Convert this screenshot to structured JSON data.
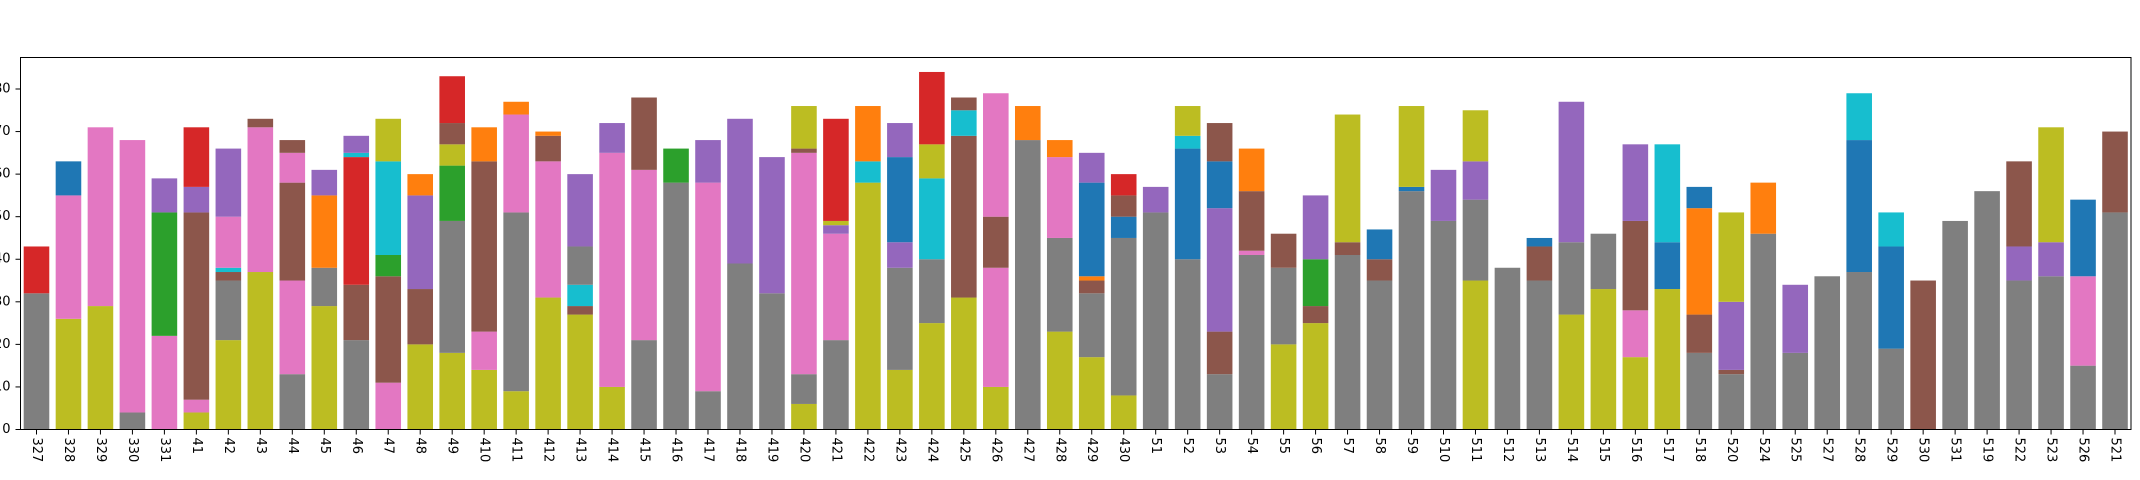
{
  "chart_data": {
    "type": "bar",
    "stacked": true,
    "ylim": [
      0,
      87.4
    ],
    "yticks": [
      0,
      10,
      20,
      30,
      40,
      50,
      60,
      70,
      80
    ],
    "bars": [
      {
        "category": "327",
        "segments": [
          [
            "#7f7f7f",
            32
          ],
          [
            "#d62728",
            11
          ]
        ]
      },
      {
        "category": "328",
        "segments": [
          [
            "#bcbd22",
            26
          ],
          [
            "#e377c2",
            29
          ],
          [
            "#1f77b4",
            8
          ]
        ]
      },
      {
        "category": "329",
        "segments": [
          [
            "#bcbd22",
            29
          ],
          [
            "#e377c2",
            42
          ]
        ]
      },
      {
        "category": "330",
        "segments": [
          [
            "#7f7f7f",
            4
          ],
          [
            "#e377c2",
            64
          ]
        ]
      },
      {
        "category": "331",
        "segments": [
          [
            "#e377c2",
            22
          ],
          [
            "#2ca02c",
            29
          ],
          [
            "#9467bd",
            8
          ]
        ]
      },
      {
        "category": "41",
        "segments": [
          [
            "#bcbd22",
            4
          ],
          [
            "#e377c2",
            3
          ],
          [
            "#8c564b",
            44
          ],
          [
            "#9467bd",
            6
          ],
          [
            "#d62728",
            14
          ]
        ]
      },
      {
        "category": "42",
        "segments": [
          [
            "#bcbd22",
            21
          ],
          [
            "#7f7f7f",
            14
          ],
          [
            "#8c564b",
            2
          ],
          [
            "#17becf",
            1
          ],
          [
            "#e377c2",
            12
          ],
          [
            "#9467bd",
            16
          ]
        ]
      },
      {
        "category": "43",
        "segments": [
          [
            "#bcbd22",
            37
          ],
          [
            "#e377c2",
            34
          ],
          [
            "#8c564b",
            2
          ]
        ]
      },
      {
        "category": "44",
        "segments": [
          [
            "#7f7f7f",
            13
          ],
          [
            "#e377c2",
            22
          ],
          [
            "#8c564b",
            23
          ],
          [
            "#e377c2",
            7
          ],
          [
            "#8c564b",
            3
          ]
        ]
      },
      {
        "category": "45",
        "segments": [
          [
            "#bcbd22",
            29
          ],
          [
            "#7f7f7f",
            9
          ],
          [
            "#ff7f0e",
            17
          ],
          [
            "#9467bd",
            6
          ]
        ]
      },
      {
        "category": "46",
        "segments": [
          [
            "#7f7f7f",
            21
          ],
          [
            "#8c564b",
            13
          ],
          [
            "#d62728",
            30
          ],
          [
            "#17becf",
            1
          ],
          [
            "#9467bd",
            4
          ]
        ]
      },
      {
        "category": "47",
        "segments": [
          [
            "#e377c2",
            11
          ],
          [
            "#8c564b",
            25
          ],
          [
            "#2ca02c",
            5
          ],
          [
            "#17becf",
            22
          ],
          [
            "#bcbd22",
            10
          ]
        ]
      },
      {
        "category": "48",
        "segments": [
          [
            "#bcbd22",
            20
          ],
          [
            "#8c564b",
            13
          ],
          [
            "#9467bd",
            22
          ],
          [
            "#ff7f0e",
            5
          ]
        ]
      },
      {
        "category": "49",
        "segments": [
          [
            "#bcbd22",
            18
          ],
          [
            "#7f7f7f",
            31
          ],
          [
            "#2ca02c",
            13
          ],
          [
            "#bcbd22",
            5
          ],
          [
            "#8c564b",
            5
          ],
          [
            "#d62728",
            11
          ]
        ]
      },
      {
        "category": "410",
        "segments": [
          [
            "#bcbd22",
            14
          ],
          [
            "#e377c2",
            9
          ],
          [
            "#8c564b",
            40
          ],
          [
            "#ff7f0e",
            8
          ]
        ]
      },
      {
        "category": "411",
        "segments": [
          [
            "#bcbd22",
            9
          ],
          [
            "#7f7f7f",
            42
          ],
          [
            "#e377c2",
            23
          ],
          [
            "#ff7f0e",
            3
          ]
        ]
      },
      {
        "category": "412",
        "segments": [
          [
            "#bcbd22",
            31
          ],
          [
            "#e377c2",
            32
          ],
          [
            "#8c564b",
            6
          ],
          [
            "#ff7f0e",
            1
          ]
        ]
      },
      {
        "category": "413",
        "segments": [
          [
            "#bcbd22",
            27
          ],
          [
            "#8c564b",
            2
          ],
          [
            "#17becf",
            5
          ],
          [
            "#7f7f7f",
            9
          ],
          [
            "#9467bd",
            17
          ]
        ]
      },
      {
        "category": "414",
        "segments": [
          [
            "#bcbd22",
            10
          ],
          [
            "#e377c2",
            55
          ],
          [
            "#9467bd",
            7
          ]
        ]
      },
      {
        "category": "415",
        "segments": [
          [
            "#7f7f7f",
            21
          ],
          [
            "#e377c2",
            40
          ],
          [
            "#8c564b",
            17
          ]
        ]
      },
      {
        "category": "416",
        "segments": [
          [
            "#7f7f7f",
            58
          ],
          [
            "#2ca02c",
            8
          ]
        ]
      },
      {
        "category": "417",
        "segments": [
          [
            "#7f7f7f",
            9
          ],
          [
            "#e377c2",
            49
          ],
          [
            "#9467bd",
            10
          ]
        ]
      },
      {
        "category": "418",
        "segments": [
          [
            "#7f7f7f",
            39
          ],
          [
            "#9467bd",
            34
          ]
        ]
      },
      {
        "category": "419",
        "segments": [
          [
            "#7f7f7f",
            32
          ],
          [
            "#9467bd",
            32
          ]
        ]
      },
      {
        "category": "420",
        "segments": [
          [
            "#bcbd22",
            6
          ],
          [
            "#7f7f7f",
            7
          ],
          [
            "#e377c2",
            52
          ],
          [
            "#8c564b",
            1
          ],
          [
            "#bcbd22",
            10
          ]
        ]
      },
      {
        "category": "421",
        "segments": [
          [
            "#7f7f7f",
            21
          ],
          [
            "#e377c2",
            25
          ],
          [
            "#9467bd",
            2
          ],
          [
            "#bcbd22",
            1
          ],
          [
            "#d62728",
            24
          ]
        ]
      },
      {
        "category": "422",
        "segments": [
          [
            "#bcbd22",
            58
          ],
          [
            "#17becf",
            5
          ],
          [
            "#ff7f0e",
            13
          ]
        ]
      },
      {
        "category": "423",
        "segments": [
          [
            "#bcbd22",
            14
          ],
          [
            "#7f7f7f",
            24
          ],
          [
            "#9467bd",
            6
          ],
          [
            "#1f77b4",
            20
          ],
          [
            "#9467bd",
            8
          ]
        ]
      },
      {
        "category": "424",
        "segments": [
          [
            "#bcbd22",
            25
          ],
          [
            "#7f7f7f",
            15
          ],
          [
            "#17becf",
            19
          ],
          [
            "#bcbd22",
            8
          ],
          [
            "#d62728",
            17
          ]
        ]
      },
      {
        "category": "425",
        "segments": [
          [
            "#bcbd22",
            31
          ],
          [
            "#8c564b",
            38
          ],
          [
            "#17becf",
            6
          ],
          [
            "#8c564b",
            3
          ]
        ]
      },
      {
        "category": "426",
        "segments": [
          [
            "#bcbd22",
            10
          ],
          [
            "#e377c2",
            28
          ],
          [
            "#8c564b",
            12
          ],
          [
            "#e377c2",
            29
          ]
        ]
      },
      {
        "category": "427",
        "segments": [
          [
            "#7f7f7f",
            68
          ],
          [
            "#ff7f0e",
            8
          ]
        ]
      },
      {
        "category": "428",
        "segments": [
          [
            "#bcbd22",
            23
          ],
          [
            "#7f7f7f",
            22
          ],
          [
            "#e377c2",
            19
          ],
          [
            "#ff7f0e",
            4
          ]
        ]
      },
      {
        "category": "429",
        "segments": [
          [
            "#bcbd22",
            17
          ],
          [
            "#7f7f7f",
            15
          ],
          [
            "#8c564b",
            3
          ],
          [
            "#ff7f0e",
            1
          ],
          [
            "#1f77b4",
            22
          ],
          [
            "#9467bd",
            7
          ]
        ]
      },
      {
        "category": "430",
        "segments": [
          [
            "#bcbd22",
            8
          ],
          [
            "#7f7f7f",
            37
          ],
          [
            "#1f77b4",
            5
          ],
          [
            "#8c564b",
            5
          ],
          [
            "#d62728",
            5
          ]
        ]
      },
      {
        "category": "51",
        "segments": [
          [
            "#7f7f7f",
            51
          ],
          [
            "#9467bd",
            6
          ]
        ]
      },
      {
        "category": "52",
        "segments": [
          [
            "#7f7f7f",
            40
          ],
          [
            "#1f77b4",
            26
          ],
          [
            "#17becf",
            3
          ],
          [
            "#bcbd22",
            7
          ]
        ]
      },
      {
        "category": "53",
        "segments": [
          [
            "#7f7f7f",
            13
          ],
          [
            "#8c564b",
            10
          ],
          [
            "#9467bd",
            29
          ],
          [
            "#1f77b4",
            11
          ],
          [
            "#8c564b",
            9
          ]
        ]
      },
      {
        "category": "54",
        "segments": [
          [
            "#7f7f7f",
            41
          ],
          [
            "#e377c2",
            1
          ],
          [
            "#8c564b",
            14
          ],
          [
            "#ff7f0e",
            10
          ]
        ]
      },
      {
        "category": "55",
        "segments": [
          [
            "#bcbd22",
            20
          ],
          [
            "#7f7f7f",
            18
          ],
          [
            "#8c564b",
            8
          ]
        ]
      },
      {
        "category": "56",
        "segments": [
          [
            "#bcbd22",
            25
          ],
          [
            "#8c564b",
            4
          ],
          [
            "#2ca02c",
            11
          ],
          [
            "#9467bd",
            15
          ]
        ]
      },
      {
        "category": "57",
        "segments": [
          [
            "#7f7f7f",
            41
          ],
          [
            "#8c564b",
            3
          ],
          [
            "#bcbd22",
            30
          ]
        ]
      },
      {
        "category": "58",
        "segments": [
          [
            "#7f7f7f",
            35
          ],
          [
            "#8c564b",
            5
          ],
          [
            "#1f77b4",
            7
          ]
        ]
      },
      {
        "category": "59",
        "segments": [
          [
            "#7f7f7f",
            56
          ],
          [
            "#1f77b4",
            1
          ],
          [
            "#bcbd22",
            19
          ]
        ]
      },
      {
        "category": "510",
        "segments": [
          [
            "#7f7f7f",
            49
          ],
          [
            "#9467bd",
            12
          ]
        ]
      },
      {
        "category": "511",
        "segments": [
          [
            "#bcbd22",
            35
          ],
          [
            "#7f7f7f",
            19
          ],
          [
            "#9467bd",
            9
          ],
          [
            "#bcbd22",
            12
          ]
        ]
      },
      {
        "category": "512",
        "segments": [
          [
            "#7f7f7f",
            38
          ]
        ]
      },
      {
        "category": "513",
        "segments": [
          [
            "#7f7f7f",
            35
          ],
          [
            "#8c564b",
            8
          ],
          [
            "#1f77b4",
            2
          ]
        ]
      },
      {
        "category": "514",
        "segments": [
          [
            "#bcbd22",
            27
          ],
          [
            "#7f7f7f",
            17
          ],
          [
            "#9467bd",
            33
          ]
        ]
      },
      {
        "category": "515",
        "segments": [
          [
            "#bcbd22",
            33
          ],
          [
            "#7f7f7f",
            13
          ]
        ]
      },
      {
        "category": "516",
        "segments": [
          [
            "#bcbd22",
            17
          ],
          [
            "#e377c2",
            11
          ],
          [
            "#8c564b",
            21
          ],
          [
            "#9467bd",
            18
          ]
        ]
      },
      {
        "category": "517",
        "segments": [
          [
            "#bcbd22",
            33
          ],
          [
            "#1f77b4",
            11
          ],
          [
            "#17becf",
            23
          ]
        ]
      },
      {
        "category": "518",
        "segments": [
          [
            "#7f7f7f",
            18
          ],
          [
            "#8c564b",
            9
          ],
          [
            "#ff7f0e",
            25
          ],
          [
            "#1f77b4",
            5
          ]
        ]
      },
      {
        "category": "520",
        "segments": [
          [
            "#7f7f7f",
            13
          ],
          [
            "#8c564b",
            1
          ],
          [
            "#9467bd",
            16
          ],
          [
            "#bcbd22",
            21
          ]
        ]
      },
      {
        "category": "524",
        "segments": [
          [
            "#7f7f7f",
            46
          ],
          [
            "#ff7f0e",
            12
          ]
        ]
      },
      {
        "category": "525",
        "segments": [
          [
            "#7f7f7f",
            18
          ],
          [
            "#9467bd",
            16
          ]
        ]
      },
      {
        "category": "527",
        "segments": [
          [
            "#7f7f7f",
            36
          ]
        ]
      },
      {
        "category": "528",
        "segments": [
          [
            "#7f7f7f",
            37
          ],
          [
            "#1f77b4",
            31
          ],
          [
            "#17becf",
            11
          ]
        ]
      },
      {
        "category": "529",
        "segments": [
          [
            "#7f7f7f",
            19
          ],
          [
            "#1f77b4",
            24
          ],
          [
            "#17becf",
            8
          ]
        ]
      },
      {
        "category": "530",
        "segments": [
          [
            "#8c564b",
            35
          ]
        ]
      },
      {
        "category": "531",
        "segments": [
          [
            "#7f7f7f",
            49
          ]
        ]
      },
      {
        "category": "519",
        "segments": [
          [
            "#7f7f7f",
            56
          ]
        ]
      },
      {
        "category": "522",
        "segments": [
          [
            "#7f7f7f",
            35
          ],
          [
            "#9467bd",
            8
          ],
          [
            "#8c564b",
            20
          ]
        ]
      },
      {
        "category": "523",
        "segments": [
          [
            "#7f7f7f",
            36
          ],
          [
            "#9467bd",
            8
          ],
          [
            "#bcbd22",
            27
          ]
        ]
      },
      {
        "category": "526",
        "segments": [
          [
            "#7f7f7f",
            15
          ],
          [
            "#e377c2",
            21
          ],
          [
            "#1f77b4",
            18
          ]
        ]
      },
      {
        "category": "521",
        "segments": [
          [
            "#7f7f7f",
            51
          ],
          [
            "#8c564b",
            19
          ]
        ]
      }
    ]
  }
}
